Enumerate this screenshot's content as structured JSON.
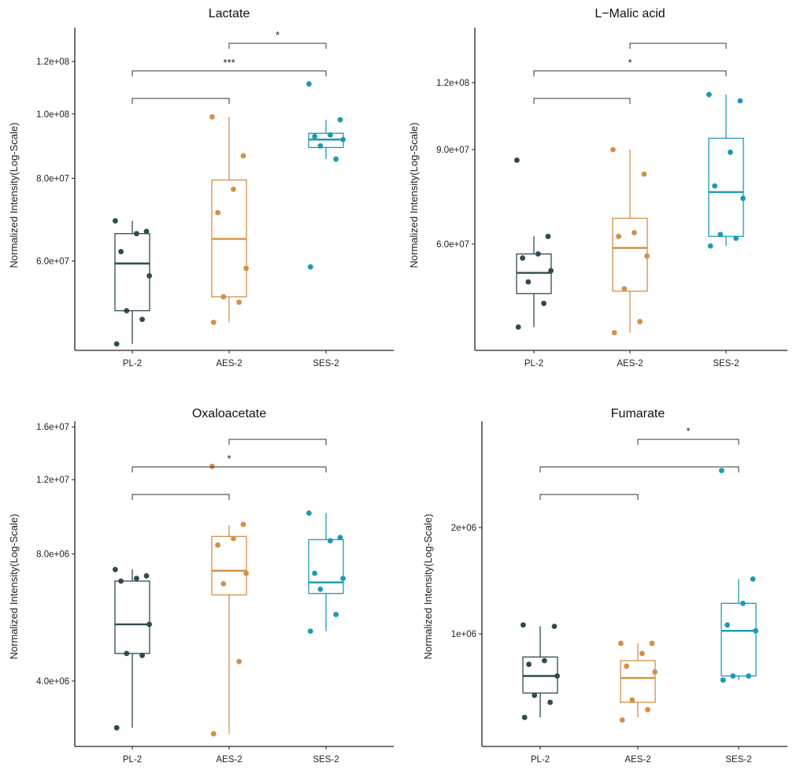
{
  "colors": {
    "PL-2": "#2f4a50",
    "AES-2": "#d39047",
    "SES-2": "#1c9ab4",
    "axis": "#222222",
    "bracket": "#333333"
  },
  "chart_data": [
    {
      "type": "boxplot",
      "title": "Lactate",
      "ylabel": "Normalized Intensity(Log-Scale)",
      "yscale": "log",
      "ylim": [
        44000000,
        135000000
      ],
      "yticks": [
        60000000,
        80000000,
        100000000,
        120000000
      ],
      "ytick_labels": [
        "6.0e+07",
        "8.0e+07",
        "1.0e+08",
        "1.2e+08"
      ],
      "categories": [
        "PL-2",
        "AES-2",
        "SES-2"
      ],
      "groups": [
        {
          "name": "PL-2",
          "whisker_low": 45000000,
          "q1": 50500000,
          "median": 59500000,
          "q3": 66000000,
          "whisker_high": 69000000,
          "points": [
            45000000,
            49000000,
            50500000,
            57000000,
            62000000,
            66000000,
            66500000,
            69000000
          ]
        },
        {
          "name": "AES-2",
          "whisker_low": 48500000,
          "q1": 53000000,
          "median": 64800000,
          "q3": 79500000,
          "whisker_high": 99000000,
          "points": [
            48500000,
            52000000,
            53000000,
            58500000,
            71000000,
            77000000,
            86500000,
            99000000
          ]
        },
        {
          "name": "SES-2",
          "whisker_low": 85500000,
          "q1": 89000000,
          "median": 91500000,
          "q3": 93500000,
          "whisker_high": 98000000,
          "points": [
            58800000,
            85500000,
            89500000,
            91500000,
            92500000,
            93000000,
            98000000,
            111000000
          ]
        }
      ],
      "comparisons": [
        {
          "from": "SES-2",
          "to": "AES-2",
          "label": "*"
        },
        {
          "from": "PL-2",
          "to": "SES-2",
          "label": "***"
        },
        {
          "from": "PL-2",
          "to": "AES-2",
          "label": ""
        }
      ]
    },
    {
      "type": "boxplot",
      "title": "L−Malic acid",
      "ylabel": "Normalized Intensity(Log-Scale)",
      "yscale": "log",
      "ylim": [
        38000000,
        152000000
      ],
      "yticks": [
        60000000,
        90000000,
        120000000
      ],
      "ytick_labels": [
        "6.0e+07",
        "9.0e+07",
        "1.2e+08"
      ],
      "categories": [
        "PL-2",
        "AES-2",
        "SES-2"
      ],
      "groups": [
        {
          "name": "PL-2",
          "whisker_low": 42000000,
          "q1": 48500000,
          "median": 53000000,
          "q3": 57500000,
          "whisker_high": 62000000,
          "points": [
            42000000,
            46500000,
            51000000,
            53500000,
            56500000,
            57500000,
            62000000,
            86000000
          ]
        },
        {
          "name": "AES-2",
          "whisker_low": 41000000,
          "q1": 49000000,
          "median": 59000000,
          "q3": 67000000,
          "whisker_high": 90000000,
          "points": [
            41000000,
            43000000,
            49500000,
            57000000,
            62000000,
            63000000,
            81000000,
            90000000
          ]
        },
        {
          "name": "SES-2",
          "whisker_low": 59500000,
          "q1": 62000000,
          "median": 75000000,
          "q3": 94500000,
          "whisker_high": 114000000,
          "points": [
            59500000,
            61500000,
            62500000,
            73000000,
            77000000,
            89000000,
            111000000,
            114000000
          ]
        }
      ],
      "comparisons": [
        {
          "from": "SES-2",
          "to": "AES-2",
          "label": ""
        },
        {
          "from": "PL-2",
          "to": "SES-2",
          "label": "*"
        },
        {
          "from": "PL-2",
          "to": "AES-2",
          "label": ""
        }
      ]
    },
    {
      "type": "boxplot",
      "title": "Oxaloacetate",
      "ylabel": "Normalized Intensity(Log-Scale)",
      "yscale": "log",
      "ylim": [
        2800000,
        16500000
      ],
      "yticks": [
        4000000,
        8000000,
        12000000,
        16000000
      ],
      "ytick_labels": [
        "4.0e+06",
        "8.0e+06",
        "1.2e+07",
        "1.6e+07"
      ],
      "categories": [
        "PL-2",
        "AES-2",
        "SES-2"
      ],
      "groups": [
        {
          "name": "PL-2",
          "whisker_low": 3100000,
          "q1": 4650000,
          "median": 5450000,
          "q3": 6900000,
          "whisker_high": 7350000,
          "points": [
            3100000,
            4600000,
            4650000,
            5450000,
            6900000,
            7000000,
            7100000,
            7350000
          ]
        },
        {
          "name": "AES-2",
          "whisker_low": 3000000,
          "q1": 6400000,
          "median": 7300000,
          "q3": 8800000,
          "whisker_high": 9350000,
          "points": [
            3000000,
            4450000,
            6800000,
            7200000,
            8400000,
            8700000,
            9400000,
            12900000
          ]
        },
        {
          "name": "SES-2",
          "whisker_low": 5250000,
          "q1": 6450000,
          "median": 6850000,
          "q3": 8650000,
          "whisker_high": 10000000,
          "points": [
            5250000,
            5750000,
            6600000,
            7000000,
            7200000,
            8600000,
            8750000,
            10000000
          ]
        }
      ],
      "comparisons": [
        {
          "from": "SES-2",
          "to": "AES-2",
          "label": ""
        },
        {
          "from": "PL-2",
          "to": "SES-2",
          "label": "*"
        },
        {
          "from": "PL-2",
          "to": "AES-2",
          "label": ""
        }
      ]
    },
    {
      "type": "boxplot",
      "title": "Fumarate",
      "ylabel": "Normalized Intensity(Log-Scale)",
      "yscale": "log",
      "ylim": [
        480000,
        4000000
      ],
      "yticks": [
        1000000,
        2000000
      ],
      "ytick_labels": [
        "1e+06",
        "2e+06"
      ],
      "categories": [
        "PL-2",
        "AES-2",
        "SES-2"
      ],
      "groups": [
        {
          "name": "PL-2",
          "whisker_low": 580000,
          "q1": 680000,
          "median": 760000,
          "q3": 860000,
          "whisker_high": 1050000,
          "points": [
            580000,
            640000,
            670000,
            760000,
            820000,
            840000,
            1050000,
            1060000
          ]
        },
        {
          "name": "AES-2",
          "whisker_low": 580000,
          "q1": 640000,
          "median": 750000,
          "q3": 840000,
          "whisker_high": 940000,
          "points": [
            570000,
            610000,
            650000,
            780000,
            810000,
            880000,
            940000,
            940000
          ]
        },
        {
          "name": "SES-2",
          "whisker_low": 740000,
          "q1": 760000,
          "median": 1020000,
          "q3": 1220000,
          "whisker_high": 1430000,
          "points": [
            740000,
            760000,
            760000,
            1020000,
            1060000,
            1220000,
            1430000,
            2900000
          ]
        }
      ],
      "comparisons": [
        {
          "from": "SES-2",
          "to": "AES-2",
          "label": "*"
        },
        {
          "from": "PL-2",
          "to": "SES-2",
          "label": ""
        },
        {
          "from": "PL-2",
          "to": "AES-2",
          "label": ""
        }
      ]
    }
  ]
}
